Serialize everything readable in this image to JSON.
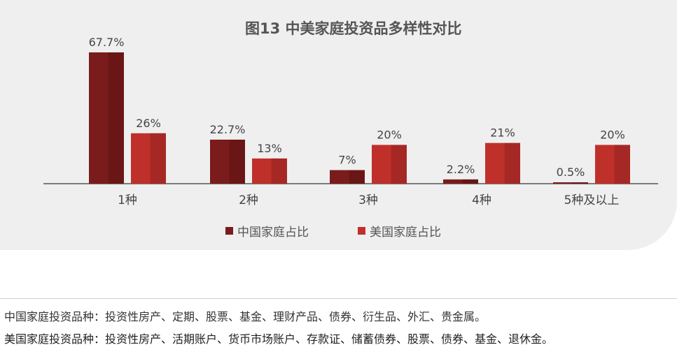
{
  "chart_data": {
    "type": "bar",
    "title": "图13 中美家庭投资品多样性对比",
    "categories": [
      "1种",
      "2种",
      "3种",
      "4种",
      "5种及以上"
    ],
    "series": [
      {
        "name": "中国家庭占比",
        "values": [
          67.7,
          22.7,
          7,
          2.2,
          0.5
        ],
        "labels": [
          "67.7%",
          "22.7%",
          "7%",
          "2.2%",
          "0.5%"
        ],
        "color": "#7a1c1c"
      },
      {
        "name": "美国家庭占比",
        "values": [
          26,
          13,
          20,
          21,
          20
        ],
        "labels": [
          "26%",
          "13%",
          "20%",
          "21%",
          "20%"
        ],
        "color": "#c0302b"
      }
    ],
    "ylim": [
      0,
      70
    ],
    "grid": false,
    "legend_position": "bottom"
  },
  "notes": {
    "line1": "中国家庭投资品种：投资性房产、定期、股票、基金、理财产品、债券、衍生品、外汇、贵金属。",
    "line2": "美国家庭投资品种：投资性房产、活期账户、货币市场账户、存款证、储蓄债券、股票、债券、基金、退休金。"
  }
}
